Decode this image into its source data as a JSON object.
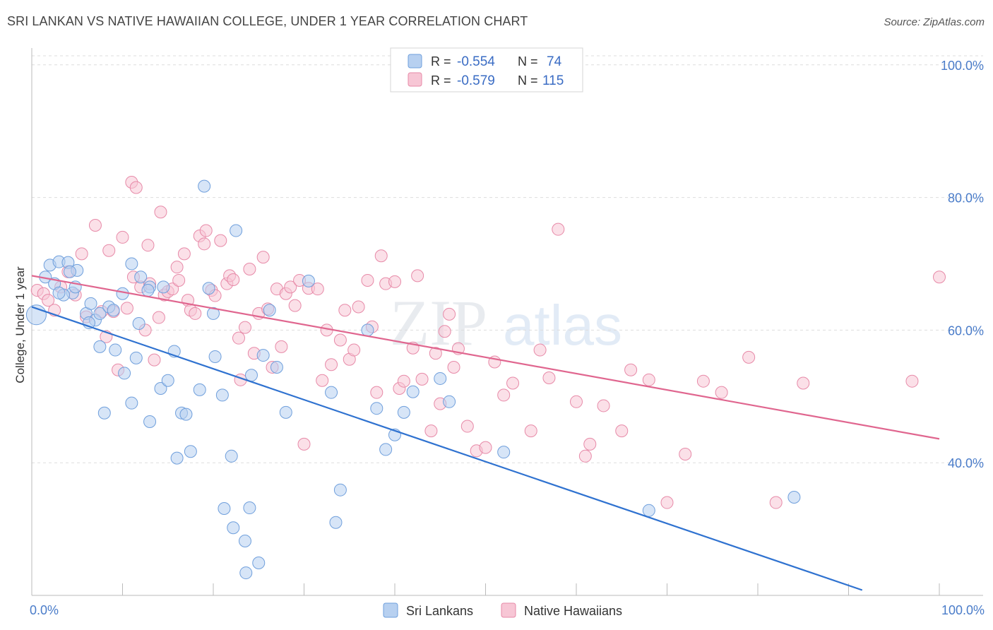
{
  "title": "SRI LANKAN VS NATIVE HAWAIIAN COLLEGE, UNDER 1 YEAR CORRELATION CHART",
  "source": "Source: ZipAtlas.com",
  "watermark": {
    "zip": "ZIP",
    "atlas": "atlas"
  },
  "colors": {
    "blue_fill": "#b7d0f0",
    "blue_stroke": "#6f9fdc",
    "blue_line": "#2f72d0",
    "pink_fill": "#f7c6d5",
    "pink_stroke": "#e78aa8",
    "pink_line": "#e0668f",
    "grid": "#dddddd",
    "tick_text": "#4a7cc9"
  },
  "stats": [
    {
      "r_label": "R =",
      "r_value": "-0.554",
      "n_label": "N =",
      "n_value": "74",
      "series": "Sri Lankans"
    },
    {
      "r_label": "R =",
      "r_value": "-0.579",
      "n_label": "N =",
      "n_value": "115",
      "series": "Native Hawaiians"
    }
  ],
  "chart_data": {
    "type": "scatter",
    "title": "SRI LANKAN VS NATIVE HAWAIIAN COLLEGE, UNDER 1 YEAR CORRELATION CHART",
    "xlabel": "",
    "ylabel": "College, Under 1 year",
    "xlim": [
      0,
      100
    ],
    "ylim": [
      20,
      102
    ],
    "x_tick_labels": [
      {
        "value": 0,
        "label": "0.0%"
      },
      {
        "value": 100,
        "label": "100.0%"
      }
    ],
    "y_tick_labels": [
      {
        "value": 100,
        "label": "100.0%"
      },
      {
        "value": 80,
        "label": "80.0%"
      },
      {
        "value": 60,
        "label": "60.0%"
      },
      {
        "value": 40,
        "label": "40.0%"
      }
    ],
    "legend_position": "bottom",
    "series": [
      {
        "name": "Sri Lankans",
        "trend": {
          "x0": 0,
          "y0": 63.5,
          "x1": 91.5,
          "y1": 20.8
        },
        "points": [
          [
            0.5,
            62.3
          ],
          [
            1.5,
            68
          ],
          [
            2,
            69.8
          ],
          [
            2.5,
            67
          ],
          [
            3,
            70.3
          ],
          [
            4,
            70.2
          ],
          [
            5,
            69
          ],
          [
            4.5,
            65.6
          ],
          [
            3.5,
            65.3
          ],
          [
            4.8,
            66.5
          ],
          [
            6,
            62.5
          ],
          [
            7,
            61.5
          ],
          [
            6.5,
            64
          ],
          [
            7.5,
            62.5
          ],
          [
            8.5,
            63.5
          ],
          [
            9,
            63
          ],
          [
            10,
            65.5
          ],
          [
            11,
            70
          ],
          [
            12,
            68
          ],
          [
            13,
            66.5
          ],
          [
            14.5,
            66.5
          ],
          [
            7.5,
            57.5
          ],
          [
            9.2,
            57
          ],
          [
            10.2,
            53.5
          ],
          [
            11,
            49
          ],
          [
            11.5,
            55.8
          ],
          [
            8,
            47.5
          ],
          [
            13,
            46.2
          ],
          [
            14.2,
            51.2
          ],
          [
            15,
            52.4
          ],
          [
            15.7,
            56.8
          ],
          [
            16.5,
            47.5
          ],
          [
            17,
            47.3
          ],
          [
            17.5,
            41.7
          ],
          [
            16,
            40.7
          ],
          [
            18.5,
            51
          ],
          [
            19,
            81.7
          ],
          [
            19.5,
            66.3
          ],
          [
            20,
            62.5
          ],
          [
            20.2,
            56
          ],
          [
            21,
            50.2
          ],
          [
            21.2,
            33.1
          ],
          [
            22,
            41
          ],
          [
            22.2,
            30.2
          ],
          [
            22.5,
            75
          ],
          [
            23.5,
            28.2
          ],
          [
            24,
            33.2
          ],
          [
            24.2,
            53.2
          ],
          [
            25,
            24.9
          ],
          [
            25.5,
            56.2
          ],
          [
            26.2,
            63
          ],
          [
            27,
            54.4
          ],
          [
            28,
            47.6
          ],
          [
            30.5,
            67.4
          ],
          [
            33,
            50.6
          ],
          [
            34,
            35.9
          ],
          [
            33.5,
            31
          ],
          [
            37,
            60
          ],
          [
            38,
            48.2
          ],
          [
            39,
            42
          ],
          [
            40,
            44.2
          ],
          [
            41,
            47.6
          ],
          [
            42,
            50.7
          ],
          [
            45,
            52.7
          ],
          [
            46,
            49.2
          ],
          [
            52,
            41.6
          ],
          [
            68,
            32.8
          ],
          [
            84,
            34.8
          ],
          [
            6.3,
            61.1
          ],
          [
            4.2,
            68.8
          ],
          [
            3,
            65.6
          ],
          [
            12.8,
            66
          ],
          [
            23.6,
            23.4
          ],
          [
            11.8,
            61
          ]
        ]
      },
      {
        "name": "Native Hawaiians",
        "trend": {
          "x0": 0,
          "y0": 68.2,
          "x1": 100,
          "y1": 43.6
        },
        "points": [
          [
            0.6,
            66
          ],
          [
            1.3,
            65.5
          ],
          [
            1.8,
            64.5
          ],
          [
            2.5,
            63
          ],
          [
            3.2,
            66.5
          ],
          [
            4,
            68.8
          ],
          [
            4.8,
            65.3
          ],
          [
            5.5,
            71.5
          ],
          [
            6,
            62
          ],
          [
            7,
            75.8
          ],
          [
            7.7,
            62.8
          ],
          [
            8.2,
            59
          ],
          [
            8.5,
            72
          ],
          [
            9,
            62.8
          ],
          [
            9.5,
            54
          ],
          [
            10,
            74
          ],
          [
            10.5,
            63.3
          ],
          [
            11,
            82.3
          ],
          [
            11.2,
            68
          ],
          [
            11.5,
            81.5
          ],
          [
            12,
            66.5
          ],
          [
            12.5,
            60
          ],
          [
            12.8,
            72.8
          ],
          [
            13,
            67
          ],
          [
            13.5,
            55.5
          ],
          [
            14,
            61.9
          ],
          [
            14.2,
            77.8
          ],
          [
            14.6,
            65.3
          ],
          [
            15,
            65.8
          ],
          [
            15.5,
            66.2
          ],
          [
            16,
            69.5
          ],
          [
            16.2,
            67.5
          ],
          [
            16.8,
            71.5
          ],
          [
            17.2,
            64.5
          ],
          [
            17.5,
            63
          ],
          [
            18,
            62.5
          ],
          [
            18.5,
            74.2
          ],
          [
            19,
            73
          ],
          [
            19.2,
            75
          ],
          [
            19.8,
            66
          ],
          [
            20.2,
            65.2
          ],
          [
            20.8,
            73.5
          ],
          [
            21.5,
            67
          ],
          [
            21.8,
            68.2
          ],
          [
            22.2,
            67.6
          ],
          [
            22.8,
            58.8
          ],
          [
            23.5,
            60.4
          ],
          [
            24,
            69.2
          ],
          [
            24.5,
            56.5
          ],
          [
            25,
            62.5
          ],
          [
            25.5,
            71
          ],
          [
            26,
            63.2
          ],
          [
            26.5,
            54.4
          ],
          [
            27,
            66.2
          ],
          [
            27.5,
            57.5
          ],
          [
            28,
            65.5
          ],
          [
            28.5,
            66.5
          ],
          [
            29,
            63.7
          ],
          [
            29.5,
            67.5
          ],
          [
            30,
            42.8
          ],
          [
            30.5,
            66.3
          ],
          [
            31.5,
            66.2
          ],
          [
            32,
            52.4
          ],
          [
            32.5,
            60
          ],
          [
            33,
            54.8
          ],
          [
            34,
            58.5
          ],
          [
            34.5,
            63
          ],
          [
            35,
            55.6
          ],
          [
            35.5,
            57
          ],
          [
            36,
            63.5
          ],
          [
            37,
            67.5
          ],
          [
            37.5,
            60.5
          ],
          [
            38,
            50.6
          ],
          [
            38.5,
            71.2
          ],
          [
            39,
            67
          ],
          [
            40,
            67.3
          ],
          [
            40.5,
            51.2
          ],
          [
            41,
            52.3
          ],
          [
            42,
            57.3
          ],
          [
            42.5,
            68.2
          ],
          [
            43,
            52.6
          ],
          [
            44,
            44.8
          ],
          [
            44.5,
            56.5
          ],
          [
            45,
            48.9
          ],
          [
            45.5,
            59.8
          ],
          [
            46,
            62.4
          ],
          [
            46.5,
            54.4
          ],
          [
            47,
            57.2
          ],
          [
            48,
            45.5
          ],
          [
            49,
            41.8
          ],
          [
            50,
            42.3
          ],
          [
            51,
            55.2
          ],
          [
            52,
            50.2
          ],
          [
            53,
            52
          ],
          [
            55,
            44.8
          ],
          [
            56,
            57
          ],
          [
            57,
            52.8
          ],
          [
            58,
            75.2
          ],
          [
            60,
            49.2
          ],
          [
            61,
            41
          ],
          [
            61.5,
            42.8
          ],
          [
            63,
            48.6
          ],
          [
            65,
            44.8
          ],
          [
            66,
            54
          ],
          [
            68,
            52.5
          ],
          [
            70,
            34
          ],
          [
            72,
            41.3
          ],
          [
            74,
            52.3
          ],
          [
            76,
            50.6
          ],
          [
            79,
            55.9
          ],
          [
            82,
            34
          ],
          [
            85,
            52
          ],
          [
            97,
            52.3
          ],
          [
            100,
            68
          ],
          [
            23,
            52.5
          ]
        ]
      }
    ]
  }
}
